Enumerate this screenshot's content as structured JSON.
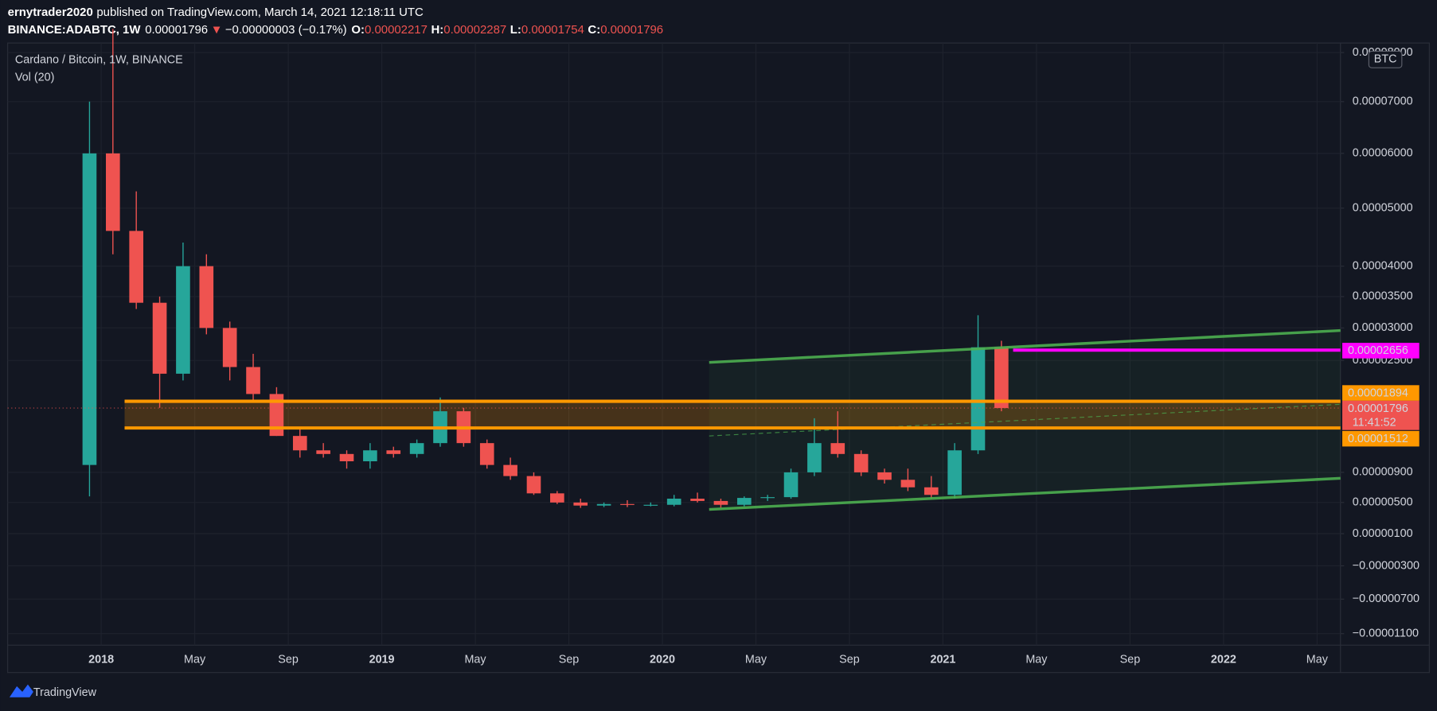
{
  "header": {
    "author": "ernytrader2020",
    "published": "published on TradingView.com, March 14, 2021 12:18:11 UTC",
    "symbol": "BINANCE:ADABTC, 1W",
    "last": "0.00001796",
    "change_arrow": "▼",
    "change": "−0.00000003 (−0.17%)",
    "ohlc": [
      {
        "label": "O:",
        "value": "0.00002217"
      },
      {
        "label": "H:",
        "value": "0.00002287"
      },
      {
        "label": "L:",
        "value": "0.00001754"
      },
      {
        "label": "C:",
        "value": "0.00001796"
      }
    ]
  },
  "chart_data": {
    "type": "candlestick",
    "title": "Cardano / Bitcoin, 1W, BINANCE",
    "indicator": "Vol (20)",
    "currency_badge": "BTC",
    "countdown": "11:41:52",
    "up_color": "#26a69a",
    "down_color": "#ef5350",
    "scale": "log",
    "grid": true,
    "x": [
      "2017-12",
      "2018-01",
      "2018-02",
      "2018-03",
      "2018-04",
      "2018-05",
      "2018-06",
      "2018-07",
      "2018-08",
      "2018-09",
      "2018-10",
      "2018-11",
      "2018-12",
      "2019-01",
      "2019-02",
      "2019-03",
      "2019-04",
      "2019-05",
      "2019-06",
      "2019-07",
      "2019-08",
      "2019-09",
      "2019-10",
      "2019-11",
      "2019-12",
      "2020-01",
      "2020-02",
      "2020-03",
      "2020-04",
      "2020-05",
      "2020-06",
      "2020-07",
      "2020-08",
      "2020-09",
      "2020-10",
      "2020-11",
      "2020-12",
      "2021-01",
      "2021-02",
      "2021-03"
    ],
    "open": [
      1e-05,
      6e-05,
      4.6e-05,
      3.4e-05,
      2.3e-05,
      4e-05,
      3e-05,
      2.4e-05,
      2e-05,
      1.4e-05,
      1.2e-05,
      1.15e-05,
      1.05e-05,
      1.2e-05,
      1.15e-05,
      1.3e-05,
      1.75e-05,
      1.3e-05,
      1e-05,
      8.5e-06,
      6.2e-06,
      5e-06,
      4.6e-06,
      4.8e-06,
      4.7e-06,
      4.7e-06,
      5.5e-06,
      5.2e-06,
      4.7e-06,
      5.6e-06,
      5.7e-06,
      9e-06,
      1.3e-05,
      1.15e-05,
      9e-06,
      8e-06,
      7e-06,
      6e-06,
      1.2e-05,
      2.7e-05
    ],
    "high": [
      7e-05,
      8.5e-05,
      5.3e-05,
      3.5e-05,
      4.4e-05,
      4.2e-05,
      3.1e-05,
      2.6e-05,
      2.1e-05,
      1.5e-05,
      1.3e-05,
      1.2e-05,
      1.3e-05,
      1.25e-05,
      1.35e-05,
      1.95e-05,
      1.8e-05,
      1.35e-05,
      1.1e-05,
      9e-06,
      6.5e-06,
      5.5e-06,
      5e-06,
      5.3e-06,
      5e-06,
      6e-06,
      6.3e-06,
      5.5e-06,
      5.8e-06,
      6e-06,
      9.5e-06,
      1.65e-05,
      1.75e-05,
      1.2e-05,
      9.5e-06,
      9.5e-06,
      8.5e-06,
      1.3e-05,
      3.2e-05,
      2.8e-05
    ],
    "low": [
      5.8e-06,
      4.2e-05,
      3.3e-05,
      1.8e-05,
      2.2e-05,
      2.9e-05,
      2.2e-05,
      1.9e-05,
      1.4e-05,
      1.1e-05,
      1.1e-05,
      9.5e-06,
      9.5e-06,
      1.1e-05,
      1.1e-05,
      1.25e-05,
      1.25e-05,
      9.5e-06,
      8e-06,
      6e-06,
      4.8e-06,
      4.3e-06,
      4.4e-06,
      4.4e-06,
      4.5e-06,
      4.5e-06,
      5e-06,
      4.3e-06,
      4.5e-06,
      5.2e-06,
      5.5e-06,
      8.5e-06,
      1.1e-05,
      8.5e-06,
      7.5e-06,
      6.5e-06,
      5.5e-06,
      5.5e-06,
      1.15e-05,
      1.75e-05
    ],
    "close": [
      6e-05,
      4.6e-05,
      3.4e-05,
      2.3e-05,
      4e-05,
      3e-05,
      2.4e-05,
      2e-05,
      1.4e-05,
      1.2e-05,
      1.15e-05,
      1.05e-05,
      1.2e-05,
      1.15e-05,
      1.3e-05,
      1.75e-05,
      1.3e-05,
      1e-05,
      8.5e-06,
      6.2e-06,
      5e-06,
      4.6e-06,
      4.8e-06,
      4.7e-06,
      4.7e-06,
      5.5e-06,
      5.2e-06,
      4.7e-06,
      5.6e-06,
      5.7e-06,
      9e-06,
      1.3e-05,
      1.15e-05,
      9e-06,
      8e-06,
      7e-06,
      6e-06,
      1.2e-05,
      2.7e-05,
      1.796e-05
    ],
    "xlim": [
      "2017-09",
      "2022-06"
    ],
    "xticks": [
      {
        "value": "2018-01",
        "label": "2018"
      },
      {
        "value": "2018-05",
        "label": "May"
      },
      {
        "value": "2018-09",
        "label": "Sep"
      },
      {
        "value": "2019-01",
        "label": "2019"
      },
      {
        "value": "2019-05",
        "label": "May"
      },
      {
        "value": "2019-09",
        "label": "Sep"
      },
      {
        "value": "2020-01",
        "label": "2020"
      },
      {
        "value": "2020-05",
        "label": "May"
      },
      {
        "value": "2020-09",
        "label": "Sep"
      },
      {
        "value": "2021-01",
        "label": "2021"
      },
      {
        "value": "2021-05",
        "label": "May"
      },
      {
        "value": "2021-09",
        "label": "Sep"
      },
      {
        "value": "2022-01",
        "label": "2022"
      },
      {
        "value": "2022-05",
        "label": "May"
      }
    ],
    "ylim": [
      -1.23e-05,
      8.2e-05
    ],
    "yticks": [
      {
        "value": 8e-05,
        "label": "0.00008000"
      },
      {
        "value": 7e-05,
        "label": "0.00007000"
      },
      {
        "value": 6e-05,
        "label": "0.00006000"
      },
      {
        "value": 5e-05,
        "label": "0.00005000"
      },
      {
        "value": 4e-05,
        "label": "0.00004000"
      },
      {
        "value": 3.5e-05,
        "label": "0.00003500"
      },
      {
        "value": 3e-05,
        "label": "0.00003000"
      },
      {
        "value": 2.5e-05,
        "label": "0.00002500"
      },
      {
        "value": 9e-06,
        "label": "0.00000900"
      },
      {
        "value": 5e-06,
        "label": "0.00000500"
      },
      {
        "value": 1e-06,
        "label": "0.00000100"
      },
      {
        "value": -3e-06,
        "label": "−0.00000300"
      },
      {
        "value": -7e-06,
        "label": "−0.00000700"
      },
      {
        "value": -1.1e-05,
        "label": "−0.00001100"
      }
    ],
    "levels": [
      {
        "value": 2.656e-05,
        "color": "#ff00ff",
        "x_start": "2021-04"
      },
      {
        "value": 1.894e-05,
        "color": "#ff9800",
        "x_start": "2018-02"
      },
      {
        "value": 1.512e-05,
        "color": "#ff9800",
        "x_start": "2018-02"
      }
    ],
    "trendlines": [
      {
        "x": [
          "2020-03",
          "2022-06"
        ],
        "values": [
          2.47e-05,
          2.96e-05
        ],
        "color": "#4caf50",
        "dashed": false
      },
      {
        "x": [
          "2020-03",
          "2022-06"
        ],
        "values": [
          4.1e-06,
          8.2e-06
        ],
        "color": "#4caf50",
        "dashed": false
      },
      {
        "x": [
          "2020-03",
          "2022-06"
        ],
        "values": [
          1.4e-05,
          1.85e-05
        ],
        "color": "#4caf50",
        "dashed": true
      }
    ],
    "channel_fill": "rgba(76,175,80,0.07)"
  },
  "footer": {
    "brand": "TradingView"
  }
}
